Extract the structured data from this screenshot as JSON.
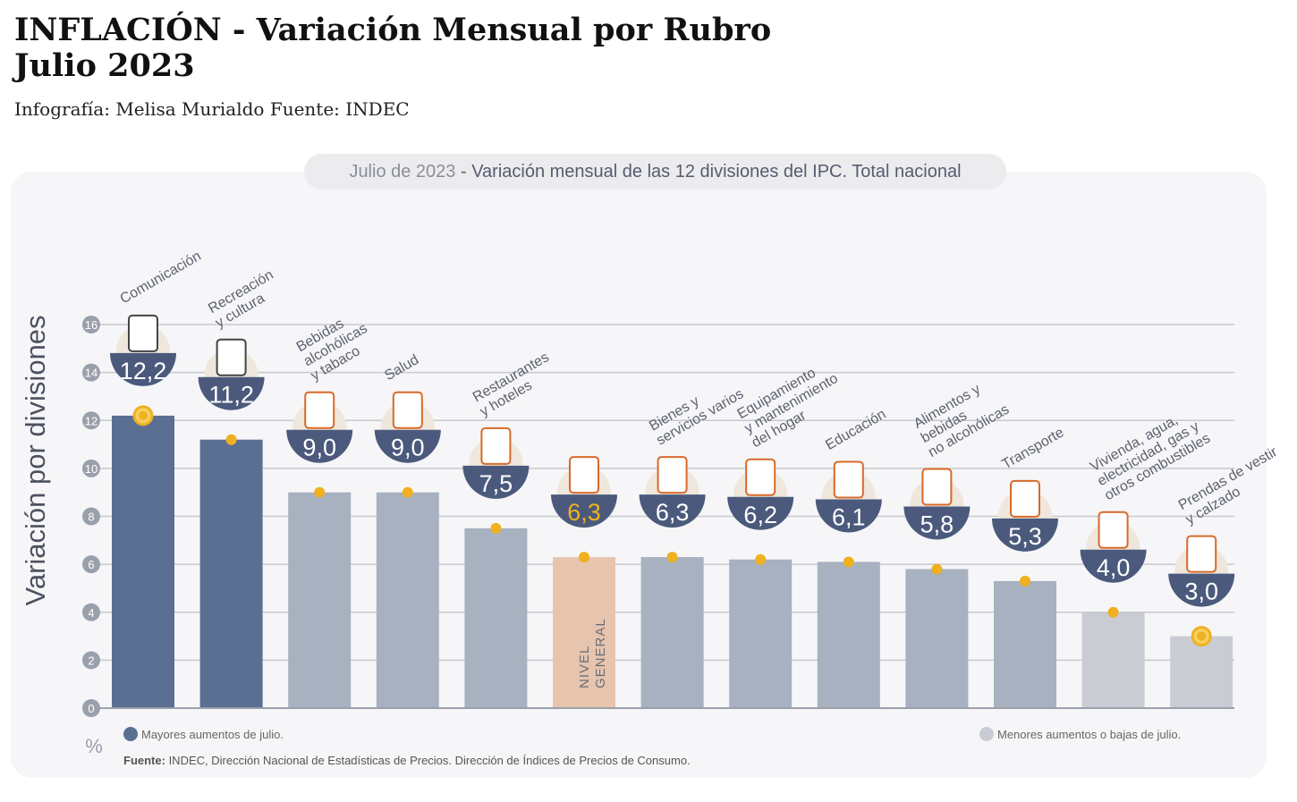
{
  "header": {
    "title_line1": "INFLACIÓN - Variación Mensual por Rubro",
    "title_line2": "Julio 2023",
    "credit": "Infografía: Melisa Murialdo Fuente: INDEC"
  },
  "chart_data": {
    "type": "bar",
    "title_prefix": "Julio de 2023",
    "title": " - Variación mensual de las 12 divisiones del IPC. Total nacional",
    "ylabel": "Variación por divisiones",
    "yunit": "%",
    "ylim": [
      0,
      16
    ],
    "yticks": [
      "0",
      "2",
      "4",
      "6",
      "8",
      "10",
      "12",
      "14",
      "16"
    ],
    "grid": true,
    "categories": [
      [
        "Comunicación"
      ],
      [
        "Recreación",
        "y cultura"
      ],
      [
        "Bebidas",
        "alcohólicas",
        "y tabaco"
      ],
      [
        "Salud"
      ],
      [
        "Restaurantes",
        "y hoteles"
      ],
      [
        "NIVEL",
        "GENERAL"
      ],
      [
        "Bienes y",
        "servicios varios"
      ],
      [
        "Equipamiento",
        "y mantenimiento",
        "del hogar"
      ],
      [
        "Educación"
      ],
      [
        "Alimentos y",
        "bebidas",
        "no alcohólicas"
      ],
      [
        "Transporte"
      ],
      [
        "Vivienda, agua,",
        "electricidad, gas y",
        "otros combustibles"
      ],
      [
        "Prendas de vestir",
        "y calzado"
      ]
    ],
    "values": [
      12.2,
      11.2,
      9.0,
      9.0,
      7.5,
      6.3,
      6.3,
      6.2,
      6.1,
      5.8,
      5.3,
      4.0,
      3.0
    ],
    "value_labels": [
      "12,2",
      "11,2",
      "9,0",
      "9,0",
      "7,5",
      "6,3",
      "6,3",
      "6,2",
      "6,1",
      "5,8",
      "5,3",
      "4,0",
      "3,0"
    ],
    "groups": [
      "mayor",
      "mayor",
      "medio",
      "medio",
      "medio",
      "general",
      "medio",
      "medio",
      "medio",
      "medio",
      "medio",
      "menor",
      "menor"
    ],
    "colors": {
      "mayor": "#5b6f93",
      "medio": "#a7b1bf",
      "general": "#e7c4ae",
      "menor": "#c9ccd2",
      "bowl": "#4b5a7c",
      "dot": "#f0b020",
      "general_value": "#f0b020"
    },
    "icons": [
      "phone-icon",
      "umbrella-icon",
      "bottle-icon",
      "first-aid-icon",
      "cutlery-icon",
      "grocery-bag-icon",
      "scissors-comb-icon",
      "washing-machine-icon",
      "notebook-icon",
      "food-icon",
      "bus-card-icon",
      "key-bulb-icon",
      "shirt-shoe-icon"
    ],
    "legend": [
      {
        "label": "Mayores aumentos de julio.",
        "color": "#5b6f93"
      },
      {
        "label": "Menores aumentos o bajas de julio.",
        "color": "#c9ccd2"
      }
    ],
    "source_label": "Fuente:",
    "source": " INDEC, Dirección Nacional de Estadísticas de Precios. Dirección de Índices de Precios de Consumo."
  }
}
